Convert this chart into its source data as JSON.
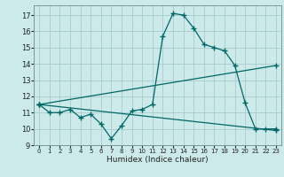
{
  "title": "",
  "xlabel": "Humidex (Indice chaleur)",
  "bg_color": "#cceaea",
  "line_color": "#006666",
  "grid_color": "#aacccc",
  "xlim": [
    -0.5,
    23.5
  ],
  "ylim": [
    9,
    17.6
  ],
  "yticks": [
    9,
    10,
    11,
    12,
    13,
    14,
    15,
    16,
    17
  ],
  "xticks": [
    0,
    1,
    2,
    3,
    4,
    5,
    6,
    7,
    8,
    9,
    10,
    11,
    12,
    13,
    14,
    15,
    16,
    17,
    18,
    19,
    20,
    21,
    22,
    23
  ],
  "series": [
    {
      "x": [
        0,
        1,
        2,
        3,
        4,
        5,
        6,
        7,
        8,
        9,
        10,
        11,
        12,
        13,
        14,
        15,
        16,
        17,
        18,
        19,
        20,
        21,
        22,
        23
      ],
      "y": [
        11.5,
        11.0,
        11.0,
        11.2,
        10.7,
        10.9,
        10.3,
        9.4,
        10.2,
        11.1,
        11.2,
        11.5,
        15.7,
        17.1,
        17.0,
        16.2,
        15.2,
        15.0,
        14.8,
        13.9,
        11.6,
        10.0,
        10.0,
        10.0
      ]
    },
    {
      "x": [
        0,
        23
      ],
      "y": [
        11.5,
        13.9
      ]
    },
    {
      "x": [
        0,
        23
      ],
      "y": [
        11.5,
        9.9
      ]
    }
  ]
}
